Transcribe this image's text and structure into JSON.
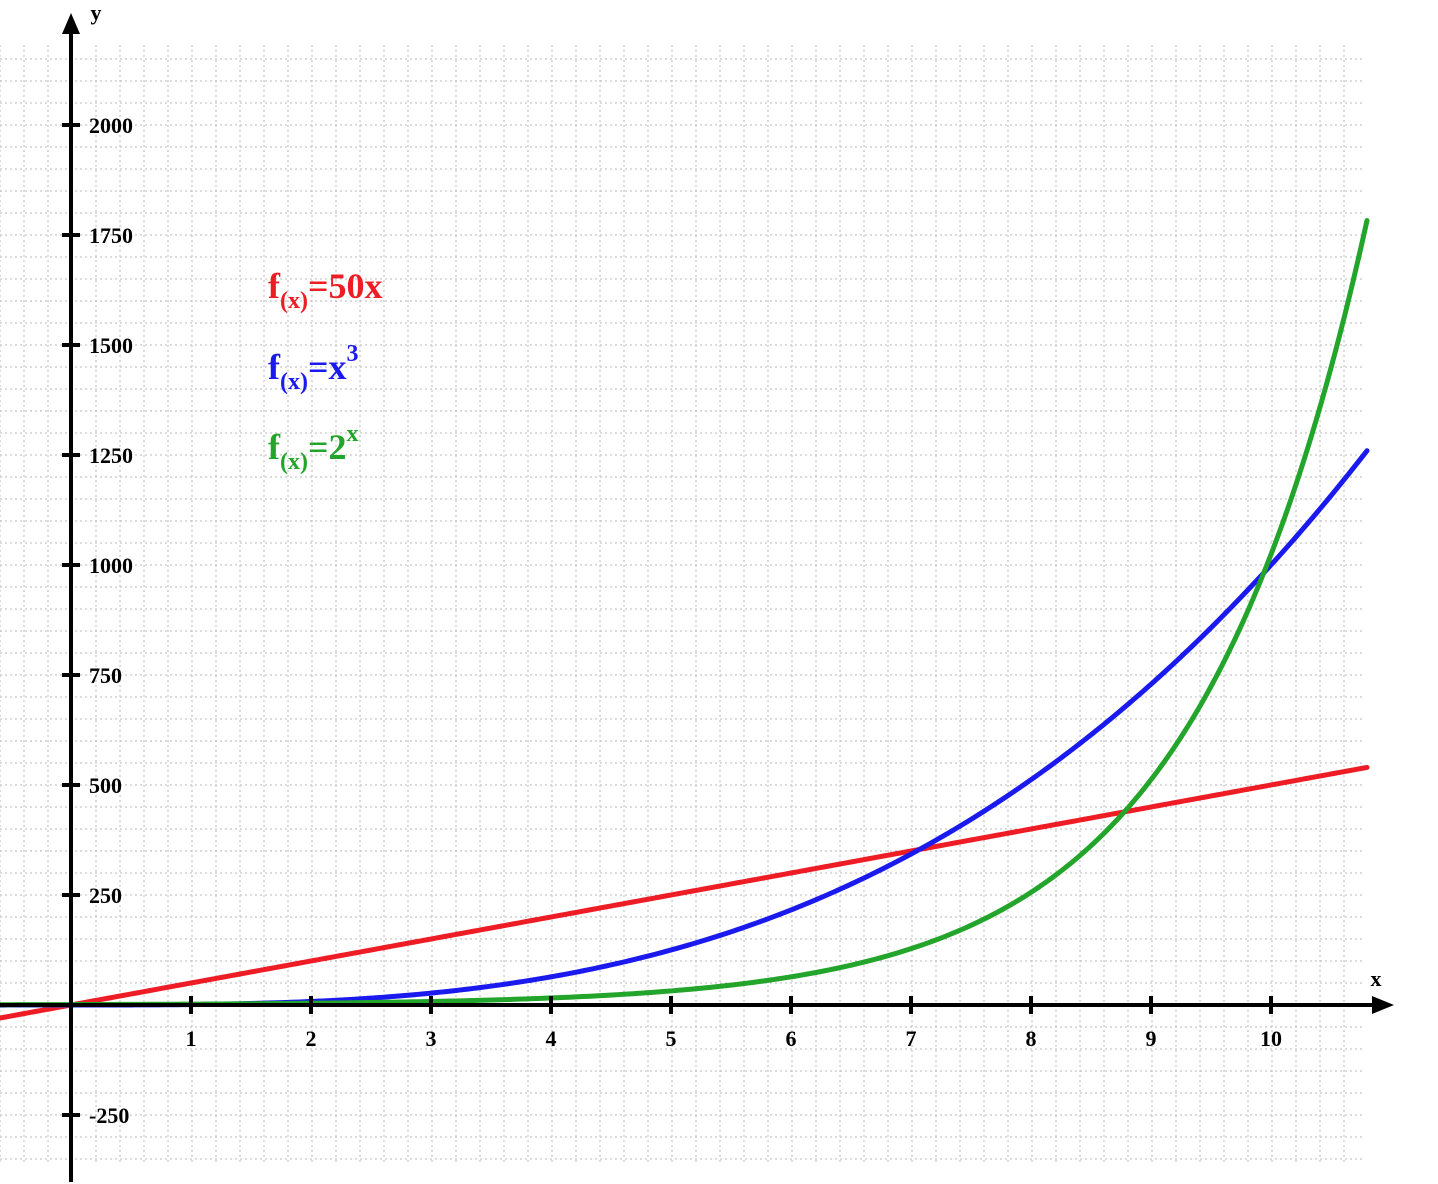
{
  "chart_data": {
    "type": "line",
    "xlabel": "x",
    "ylabel": "y",
    "x_ticks": [
      "1",
      "2",
      "3",
      "4",
      "5",
      "6",
      "7",
      "8",
      "9",
      "10"
    ],
    "y_ticks": [
      "-250",
      "250",
      "500",
      "750",
      "1000",
      "1250",
      "1500",
      "1750",
      "2000"
    ],
    "xlim": [
      -0.6,
      10.8
    ],
    "ylim": [
      -410,
      2195
    ],
    "grid": true,
    "legend_position": "upper-left",
    "series": [
      {
        "name": "f(x)=50x",
        "legend": {
          "f": "f",
          "sub": "(x)",
          "eq": "=50x",
          "sup": ""
        },
        "formula": "50x",
        "color": "#ee1c25",
        "x": [
          -0.6,
          0,
          1,
          2,
          3,
          4,
          5,
          6,
          7,
          8,
          9,
          10,
          10.8
        ],
        "y": [
          -30,
          0,
          50,
          100,
          150,
          200,
          250,
          300,
          350,
          400,
          450,
          500,
          540
        ]
      },
      {
        "name": "f(x)=x^3",
        "legend": {
          "f": "f",
          "sub": "(x)",
          "eq": "=x",
          "sup": "3"
        },
        "formula": "x^3",
        "color": "#1a1aef",
        "x": [
          -0.6,
          0,
          1,
          2,
          3,
          4,
          5,
          6,
          7,
          8,
          9,
          10,
          10.8
        ],
        "y": [
          -0.22,
          0,
          1,
          8,
          27,
          64,
          125,
          216,
          343,
          512,
          729,
          1000,
          1259.7
        ]
      },
      {
        "name": "f(x)=2^x",
        "legend": {
          "f": "f",
          "sub": "(x)",
          "eq": "=2",
          "sup": "x"
        },
        "formula": "2^x",
        "color": "#22a52a",
        "x": [
          -0.6,
          0,
          1,
          2,
          3,
          4,
          5,
          6,
          7,
          8,
          9,
          10,
          10.8
        ],
        "y": [
          0.66,
          1,
          2,
          4,
          8,
          16,
          32,
          64,
          128,
          256,
          512,
          1024,
          1782.9
        ]
      }
    ]
  }
}
